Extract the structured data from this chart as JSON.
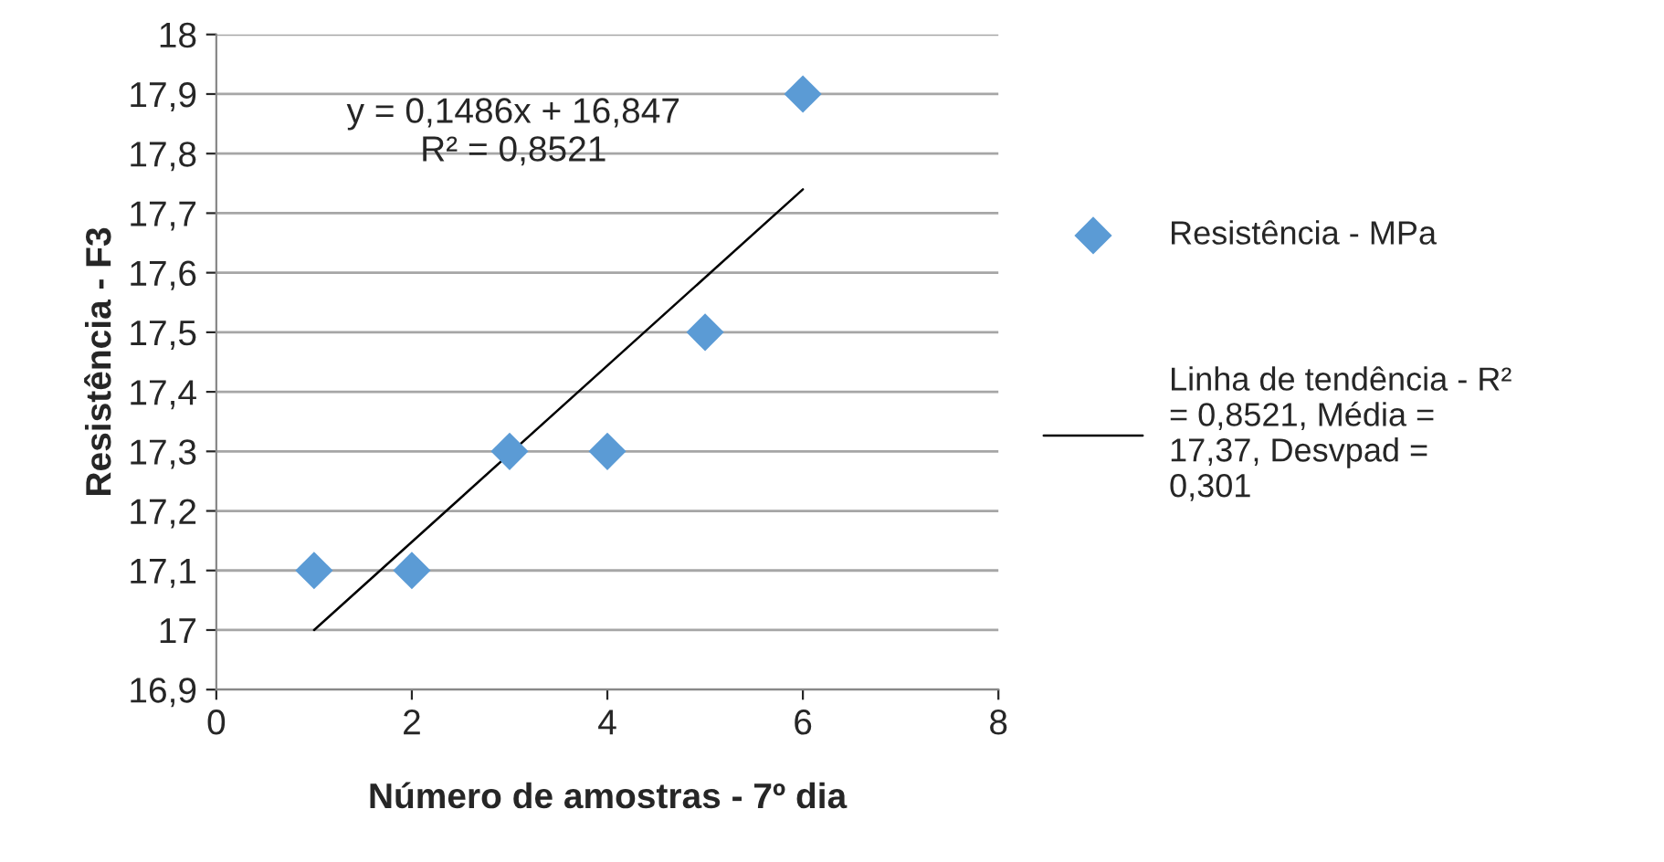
{
  "chart_data": {
    "type": "scatter",
    "xlabel": "Número de amostras - 7º dia",
    "ylabel": "Resistência - F3",
    "annotations": [
      "y = 0,1486x + 16,847\nR² = 0,8521"
    ],
    "x": [
      1,
      2,
      3,
      4,
      5,
      6
    ],
    "series": [
      {
        "name": "Resistência - MPa",
        "color": "#5b9bd5",
        "marker": "diamond",
        "values": [
          17.1,
          17.1,
          17.3,
          17.3,
          17.5,
          17.9
        ]
      },
      {
        "name": "Linha de tendência - R²\n= 0,8521, Média =\n17,37, Desvpad =\n0,301",
        "type": "line",
        "color": "#000000",
        "line_style": "solid",
        "x": [
          1,
          6
        ],
        "values": [
          17.0,
          17.74
        ]
      }
    ],
    "xlim": [
      0,
      8
    ],
    "xticks": [
      0,
      2,
      4,
      6,
      8
    ],
    "ylim": [
      16.9,
      18
    ],
    "yticks": [
      {
        "value": 16.9,
        "label": "16,9"
      },
      {
        "value": 17,
        "label": "17"
      },
      {
        "value": 17.1,
        "label": "17,1"
      },
      {
        "value": 17.2,
        "label": "17,2"
      },
      {
        "value": 17.3,
        "label": "17,3"
      },
      {
        "value": 17.4,
        "label": "17,4"
      },
      {
        "value": 17.5,
        "label": "17,5"
      },
      {
        "value": 17.6,
        "label": "17,6"
      },
      {
        "value": 17.7,
        "label": "17,7"
      },
      {
        "value": 17.8,
        "label": "17,8"
      },
      {
        "value": 17.9,
        "label": "17,9"
      },
      {
        "value": 18,
        "label": "18"
      }
    ],
    "grid": "y",
    "legend": "right"
  }
}
